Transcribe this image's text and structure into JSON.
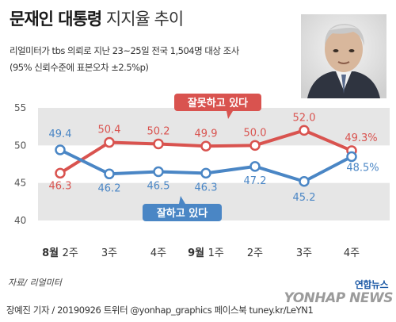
{
  "title": {
    "bold": "문재인 대통령",
    "light": "지지율 추이"
  },
  "subtitle_lines": [
    "리얼미터가 tbs 의뢰로 지난 23~25일 전국 1,504명 대상 조사",
    "(95% 신뢰수준에 표본오차 ±2.5%p)"
  ],
  "source": "자료/ 리얼미터",
  "footer": "장예진 기자 / 20190926 트위터 @yonhap_graphics  페이스북 tuney.kr/LeYN1",
  "logo": {
    "korean": "연합뉴스",
    "english": "YONHAP NEWS"
  },
  "colors": {
    "disapprove": "#d9534f",
    "approve": "#4a86c5",
    "band": "#e6e6e6",
    "grid": "#ffffff"
  },
  "chart_data": {
    "type": "line",
    "categories": [
      "8월 2주",
      "3주",
      "4주",
      "9월 1주",
      "2주",
      "3주",
      "4주"
    ],
    "category_parts": [
      {
        "major": "8월",
        "minor": "2주"
      },
      {
        "major": "",
        "minor": "3주"
      },
      {
        "major": "",
        "minor": "4주"
      },
      {
        "major": "9월",
        "minor": "1주"
      },
      {
        "major": "",
        "minor": "2주"
      },
      {
        "major": "",
        "minor": "3주"
      },
      {
        "major": "",
        "minor": "4주"
      }
    ],
    "series": [
      {
        "name": "잘못하고 있다",
        "color": "#d9534f",
        "values": [
          46.3,
          50.4,
          50.2,
          49.9,
          50.0,
          52.0,
          49.3
        ],
        "labels": [
          "46.3",
          "50.4",
          "50.2",
          "49.9",
          "50.0",
          "52.0",
          "49.3%"
        ]
      },
      {
        "name": "잘하고 있다",
        "color": "#4a86c5",
        "values": [
          49.4,
          46.2,
          46.5,
          46.3,
          47.2,
          45.2,
          48.5
        ],
        "labels": [
          "49.4",
          "46.2",
          "46.5",
          "46.3",
          "47.2",
          "45.2",
          "48.5%"
        ]
      }
    ],
    "yticks": [
      "40",
      "45",
      "50",
      "55"
    ],
    "ylim": [
      40,
      55
    ],
    "grid": true,
    "xlabel": "",
    "ylabel": ""
  }
}
